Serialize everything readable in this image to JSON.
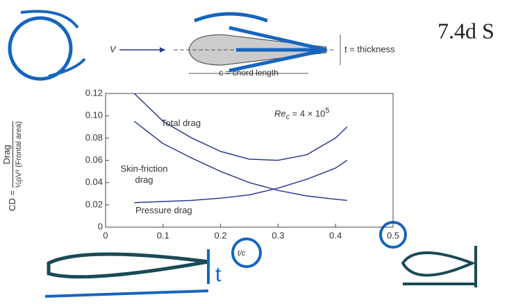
{
  "slide_title": "7.4d S",
  "diagram": {
    "velocity": "V",
    "thickness": "t = thickness",
    "chord": "c = chord length"
  },
  "handwritten": {
    "thickness_mark": "t"
  },
  "chart_data": {
    "type": "line",
    "ylabel": {
      "lhs": "CD =",
      "numerator": "Drag",
      "denominator": "½ρV² (Frontal area)"
    },
    "xlabel": "t/c",
    "annotation": {
      "base": "Re",
      "sub": "c",
      "rest": " = 4 × 10",
      "sup": "5"
    },
    "x": [
      0.05,
      0.1,
      0.15,
      0.2,
      0.25,
      0.3,
      0.35,
      0.4,
      0.42
    ],
    "series": [
      {
        "name": "Total drag",
        "color": "#2b3a8c",
        "values": [
          0.12,
          0.095,
          0.08,
          0.068,
          0.061,
          0.06,
          0.065,
          0.08,
          0.09
        ]
      },
      {
        "name": "Skin-friction drag",
        "color": "#2b3a8c",
        "values": [
          0.095,
          0.075,
          0.062,
          0.05,
          0.04,
          0.033,
          0.028,
          0.025,
          0.024
        ]
      },
      {
        "name": "Pressure drag",
        "color": "#2b3a8c",
        "values": [
          0.022,
          0.023,
          0.024,
          0.026,
          0.029,
          0.035,
          0.043,
          0.053,
          0.06
        ]
      }
    ],
    "xlim": [
      0,
      0.5
    ],
    "ylim": [
      0,
      0.12
    ],
    "xticks": [
      0,
      0.1,
      0.2,
      0.3,
      0.4,
      0.5
    ],
    "yticks": [
      0,
      0.02,
      0.04,
      0.06,
      0.08,
      {
        "value": 0.1,
        "label": "0.10"
      },
      0.12
    ]
  }
}
